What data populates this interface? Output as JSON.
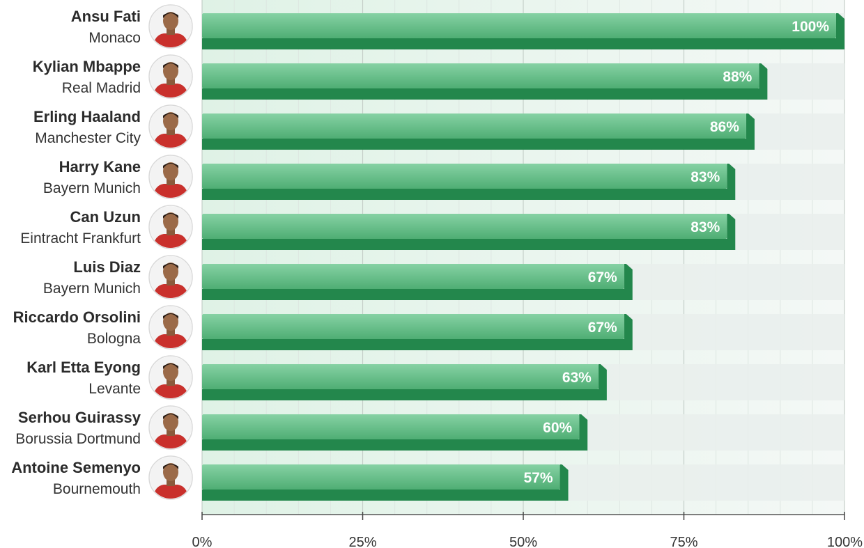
{
  "chart_data": {
    "type": "bar",
    "orientation": "horizontal",
    "categories": [
      {
        "player": "Ansu Fati",
        "club": "Monaco"
      },
      {
        "player": "Kylian Mbappe",
        "club": "Real Madrid"
      },
      {
        "player": "Erling Haaland",
        "club": "Manchester City"
      },
      {
        "player": "Harry Kane",
        "club": "Bayern Munich"
      },
      {
        "player": "Can Uzun",
        "club": "Eintracht Frankfurt"
      },
      {
        "player": "Luis Diaz",
        "club": "Bayern Munich"
      },
      {
        "player": "Riccardo Orsolini",
        "club": "Bologna"
      },
      {
        "player": "Karl Etta Eyong",
        "club": "Levante"
      },
      {
        "player": "Serhou Guirassy",
        "club": "Borussia Dortmund"
      },
      {
        "player": "Antoine Semenyo",
        "club": "Bournemouth"
      }
    ],
    "values": [
      100,
      88,
      86,
      83,
      83,
      67,
      67,
      63,
      60,
      57
    ],
    "value_labels": [
      "100%",
      "88%",
      "86%",
      "83%",
      "83%",
      "67%",
      "67%",
      "63%",
      "60%",
      "57%"
    ],
    "xlim": [
      0,
      100
    ],
    "x_ticks": [
      0,
      25,
      50,
      75,
      100
    ],
    "x_tick_labels": [
      "0%",
      "25%",
      "50%",
      "75%",
      "100%"
    ],
    "grid": true,
    "title": "",
    "xlabel": "",
    "ylabel": "",
    "colors": {
      "bar_top": "#7ccc9c",
      "bar_bottom": "#4fae74",
      "bar_base": "#23874c",
      "track": "#e9efec",
      "grid_line": "#cfd8d3"
    },
    "avatar_icon": "player-photo-icon"
  }
}
